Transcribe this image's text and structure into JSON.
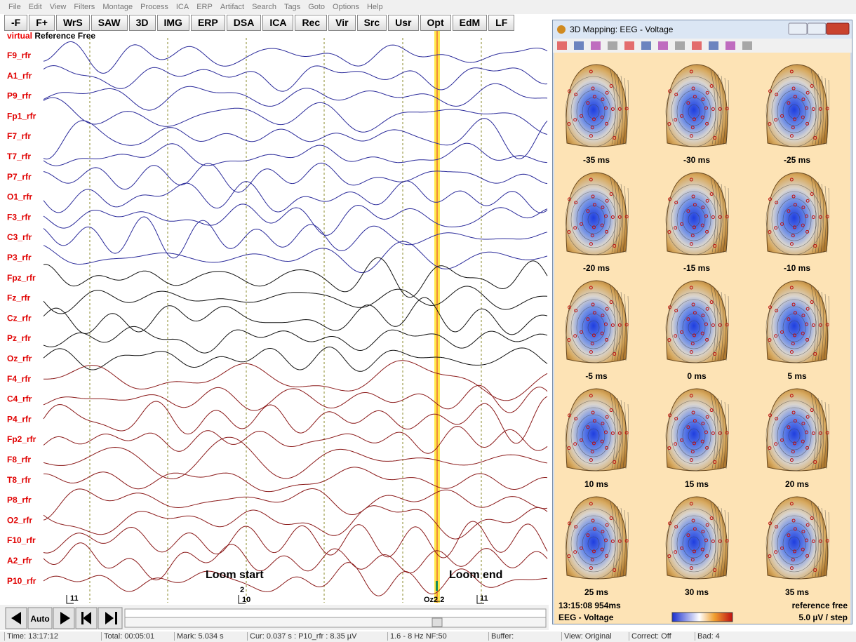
{
  "menu": [
    "File",
    "Edit",
    "View",
    "Filters",
    "Montage",
    "Process",
    "ICA",
    "ERP",
    "Artifact",
    "Search",
    "Tags",
    "Goto",
    "Options",
    "Help"
  ],
  "toolbar": [
    "-F",
    "F+",
    "WrS",
    "SAW",
    "3D",
    "IMG",
    "ERP",
    "DSA",
    "ICA",
    "Rec",
    "Vir",
    "Src",
    "Usr",
    "Opt",
    "EdM",
    "LF"
  ],
  "montage": {
    "prefix": "virtual",
    "name": "Reference Free"
  },
  "channels": [
    "F9_rfr",
    "A1_rfr",
    "P9_rfr",
    "Fp1_rfr",
    "F7_rfr",
    "T7_rfr",
    "P7_rfr",
    "O1_rfr",
    "F3_rfr",
    "C3_rfr",
    "P3_rfr",
    "Fpz_rfr",
    "Fz_rfr",
    "Cz_rfr",
    "Pz_rfr",
    "Oz_rfr",
    "F4_rfr",
    "C4_rfr",
    "P4_rfr",
    "Fp2_rfr",
    "F8_rfr",
    "T8_rfr",
    "P8_rfr",
    "O2_rfr",
    "F10_rfr",
    "A2_rfr",
    "P10_rfr"
  ],
  "annotations": [
    "Loom start",
    "Loom end"
  ],
  "markers": [
    "11",
    "2",
    "10",
    "Oz2.2",
    "11"
  ],
  "nav": {
    "auto": "Auto"
  },
  "mapping": {
    "title": "3D Mapping: EEG - Voltage",
    "maps": [
      "-35 ms",
      "-30 ms",
      "-25 ms",
      "-20 ms",
      "-15 ms",
      "-10 ms",
      "-5 ms",
      "0 ms",
      "5 ms",
      "10 ms",
      "15 ms",
      "20 ms",
      "25 ms",
      "30 ms",
      "35 ms"
    ],
    "time": "13:15:08 954ms",
    "reference": "reference free",
    "measure": "EEG - Voltage",
    "step": "5.0 µV / step"
  },
  "status": [
    "Time: 13:17:12",
    "Total: 00:05:01",
    "Mark: 5.034 s",
    "Cur: 0.037 s : P10_rfr : 8.35 µV",
    "1.6 - 8 Hz  NF:50",
    "Buffer:",
    "View: Original",
    "Correct: Off",
    "Bad: 4"
  ]
}
